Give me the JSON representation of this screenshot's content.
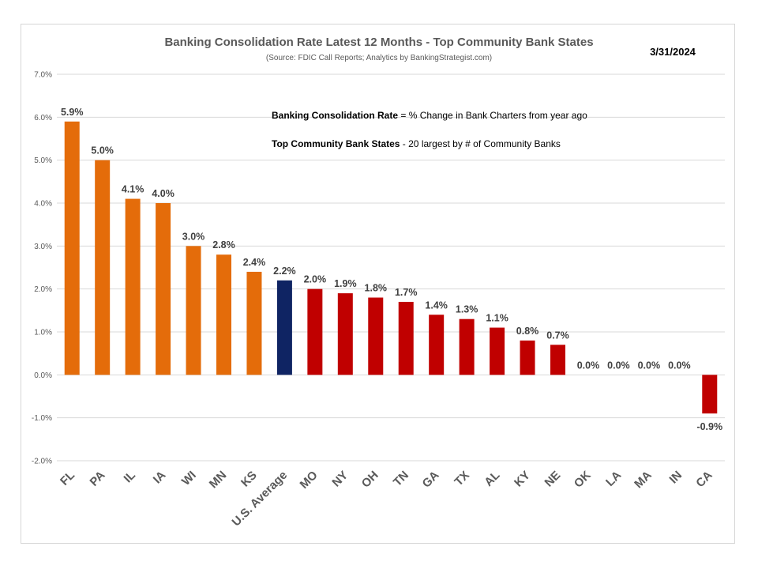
{
  "chart_data": {
    "type": "bar",
    "title": "Banking Consolidation Rate Latest 12 Months - Top Community Bank States",
    "subtitle": "(Source: FDIC Call Reports; Analytics by BankingStrategist.com)",
    "date": "3/31/2024",
    "notes": [
      {
        "bold": "Banking Consolidation Rate",
        "rest": " = % Change in Bank Charters from year ago"
      },
      {
        "bold": "Top Community Bank States",
        "rest": " - 20 largest by # of Community Banks"
      }
    ],
    "categories": [
      "FL",
      "PA",
      "IL",
      "IA",
      "WI",
      "MN",
      "KS",
      "U.S. Average",
      "MO",
      "NY",
      "OH",
      "TN",
      "GA",
      "TX",
      "AL",
      "KY",
      "NE",
      "OK",
      "LA",
      "MA",
      "IN",
      "CA"
    ],
    "values": [
      5.9,
      5.0,
      4.1,
      4.0,
      3.0,
      2.8,
      2.4,
      2.2,
      2.0,
      1.9,
      1.8,
      1.7,
      1.4,
      1.3,
      1.1,
      0.8,
      0.7,
      0.0,
      0.0,
      0.0,
      0.0,
      -0.9
    ],
    "labels": [
      "5.9%",
      "5.0%",
      "4.1%",
      "4.0%",
      "3.0%",
      "2.8%",
      "2.4%",
      "2.2%",
      "2.0%",
      "1.9%",
      "1.8%",
      "1.7%",
      "1.4%",
      "1.3%",
      "1.1%",
      "0.8%",
      "0.7%",
      "0.0%",
      "0.0%",
      "0.0%",
      "0.0%",
      "-0.9%"
    ],
    "groups": [
      "top",
      "top",
      "top",
      "top",
      "top",
      "top",
      "top",
      "avg",
      "rest",
      "rest",
      "rest",
      "rest",
      "rest",
      "rest",
      "rest",
      "rest",
      "rest",
      "rest",
      "rest",
      "rest",
      "rest",
      "rest"
    ],
    "colors": {
      "top": "#E46C0A",
      "avg": "#0F2463",
      "rest": "#C00000"
    },
    "ylim": [
      -2.0,
      7.0
    ],
    "yticks": [
      "-2.0%",
      "-1.0%",
      "0.0%",
      "1.0%",
      "2.0%",
      "3.0%",
      "4.0%",
      "5.0%",
      "6.0%",
      "7.0%"
    ],
    "ytick_values": [
      -2,
      -1,
      0,
      1,
      2,
      3,
      4,
      5,
      6,
      7
    ],
    "grid": true,
    "xlabel": "",
    "ylabel": ""
  }
}
